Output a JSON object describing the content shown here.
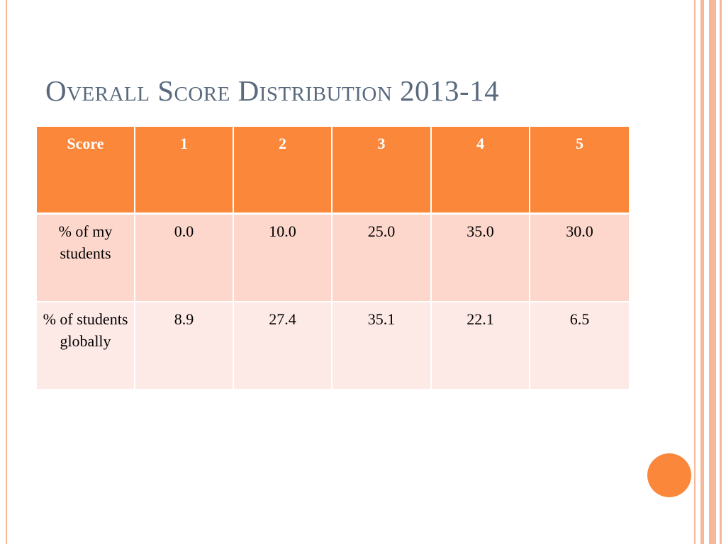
{
  "slide": {
    "title": "Overall Score Distribution 2013-14"
  },
  "table": {
    "header": [
      "Score",
      "1",
      "2",
      "3",
      "4",
      "5"
    ],
    "rows": [
      {
        "label": "% of my students",
        "values": [
          "0.0",
          "10.0",
          "25.0",
          "35.0",
          "30.0"
        ]
      },
      {
        "label": "% of students globally",
        "values": [
          "8.9",
          "27.4",
          "35.1",
          "22.1",
          "6.5"
        ]
      }
    ]
  },
  "colors": {
    "accent": "#fb873b",
    "title": "#5a6a7e",
    "row_light": "#fdd7cb",
    "row_lighter": "#fdeae6",
    "border_lines": "#f5b89a"
  }
}
